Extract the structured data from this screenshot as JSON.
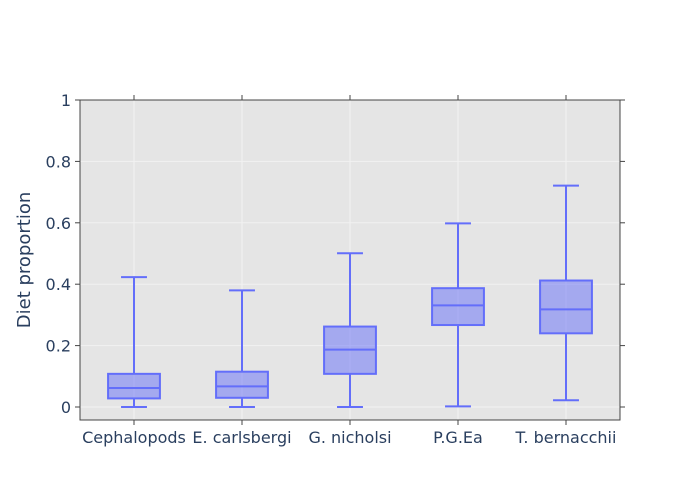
{
  "chart_data": {
    "type": "box",
    "title": "",
    "xlabel": "",
    "ylabel": "Diet proportion",
    "ylim": [
      -0.04,
      1.0
    ],
    "yticks": [
      0,
      0.2,
      0.4,
      0.6,
      0.8,
      1
    ],
    "ytick_labels": [
      "0",
      "0.2",
      "0.4",
      "0.6",
      "0.8",
      "1"
    ],
    "grid": true,
    "box_color": "#636efa",
    "plot_bg": "#e5e5e5",
    "grid_color": "#f2f2f2",
    "categories": [
      "Cephalopods",
      "E. carlsbergi",
      "G. nicholsi",
      "P.G.Ea",
      "T. bernacchii"
    ],
    "boxes": [
      {
        "category": "Cephalopods",
        "min": 0.0,
        "q1": 0.028,
        "median": 0.062,
        "q3": 0.108,
        "max": 0.423
      },
      {
        "category": "E. carlsbergi",
        "min": 0.0,
        "q1": 0.03,
        "median": 0.067,
        "q3": 0.115,
        "max": 0.38
      },
      {
        "category": "G. nicholsi",
        "min": 0.0,
        "q1": 0.108,
        "median": 0.187,
        "q3": 0.262,
        "max": 0.501
      },
      {
        "category": "P.G.Ea",
        "min": 0.002,
        "q1": 0.267,
        "median": 0.331,
        "q3": 0.387,
        "max": 0.598
      },
      {
        "category": "T. bernacchii",
        "min": 0.022,
        "q1": 0.24,
        "median": 0.318,
        "q3": 0.412,
        "max": 0.721
      }
    ]
  }
}
